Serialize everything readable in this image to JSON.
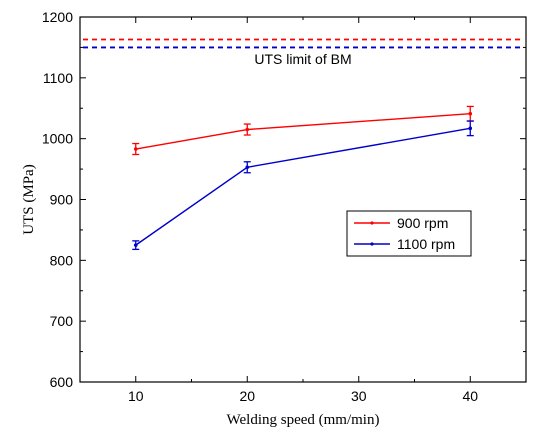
{
  "chart_data": {
    "type": "line",
    "xlabel": "Welding speed (mm/min)",
    "ylabel": "UTS (MPa)",
    "xlim": [
      5,
      45
    ],
    "ylim": [
      600,
      1200
    ],
    "xticks": [
      10,
      20,
      30,
      40
    ],
    "yticks": [
      600,
      700,
      800,
      900,
      1000,
      1100,
      1200
    ],
    "grid": false,
    "legend_position": "right-middle",
    "series": [
      {
        "name": "900 rpm",
        "color": "#ff0000",
        "x": [
          10,
          20,
          40
        ],
        "y": [
          983,
          1015,
          1041
        ],
        "err": [
          9,
          9,
          12
        ]
      },
      {
        "name": "1100 rpm",
        "color": "#0000cc",
        "x": [
          10,
          20,
          40
        ],
        "y": [
          825,
          953,
          1017
        ],
        "err": [
          7,
          9,
          12
        ]
      }
    ],
    "reference_lines": [
      {
        "y": 1163,
        "color": "#ff0000",
        "style": "dashed"
      },
      {
        "y": 1150,
        "color": "#0000cc",
        "style": "dashed"
      }
    ],
    "annotations": [
      {
        "text": "UTS limit of BM",
        "x": 25,
        "y": 1123
      }
    ]
  }
}
